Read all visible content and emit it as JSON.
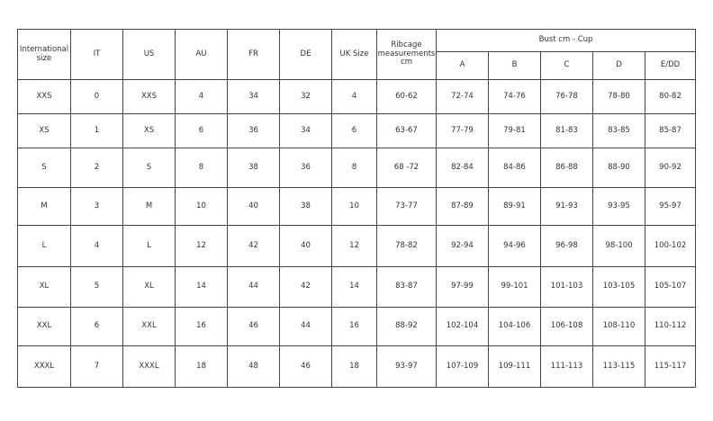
{
  "headers": {
    "international": "International size",
    "it": "IT",
    "us": "US",
    "au": "AU",
    "fr": "FR",
    "de": "DE",
    "uk": "UK Size",
    "ribcage": "Ribcage measurements cm",
    "bust_group": "Bust cm - Cup",
    "cups": [
      "A",
      "B",
      "C",
      "D",
      "E/DD"
    ]
  },
  "rows": [
    [
      "XXS",
      "0",
      "XXS",
      "4",
      "34",
      "32",
      "4",
      "60-62",
      "72-74",
      "74-76",
      "76-78",
      "78-80",
      "80-82"
    ],
    [
      "XS",
      "1",
      "XS",
      "6",
      "36",
      "34",
      "6",
      "63-67",
      "77-79",
      "79-81",
      "81-83",
      "83-85",
      "85-87"
    ],
    [
      "S",
      "2",
      "S",
      "8",
      "38",
      "36",
      "8",
      "68 -72",
      "82-84",
      "84-86",
      "86-88",
      "88-90",
      "90-92"
    ],
    [
      "M",
      "3",
      "M",
      "10",
      "40",
      "38",
      "10",
      "73-77",
      "87-89",
      "89-91",
      "91-93",
      "93-95",
      "95-97"
    ],
    [
      "L",
      "4",
      "L",
      "12",
      "42",
      "40",
      "12",
      "78-82",
      "92-94",
      "94-96",
      "96-98",
      "98-100",
      "100-102"
    ],
    [
      "XL",
      "5",
      "XL",
      "14",
      "44",
      "42",
      "14",
      "83-87",
      "97-99",
      "99-101",
      "101-103",
      "103-105",
      "105-107"
    ],
    [
      "XXL",
      "6",
      "XXL",
      "16",
      "46",
      "44",
      "16",
      "88-92",
      "102-104",
      "104-106",
      "106-108",
      "108-110",
      "110-112"
    ],
    [
      "XXXL",
      "7",
      "XXXL",
      "18",
      "48",
      "46",
      "18",
      "93-97",
      "107-109",
      "109-111",
      "111-113",
      "113-115",
      "115-117"
    ]
  ]
}
